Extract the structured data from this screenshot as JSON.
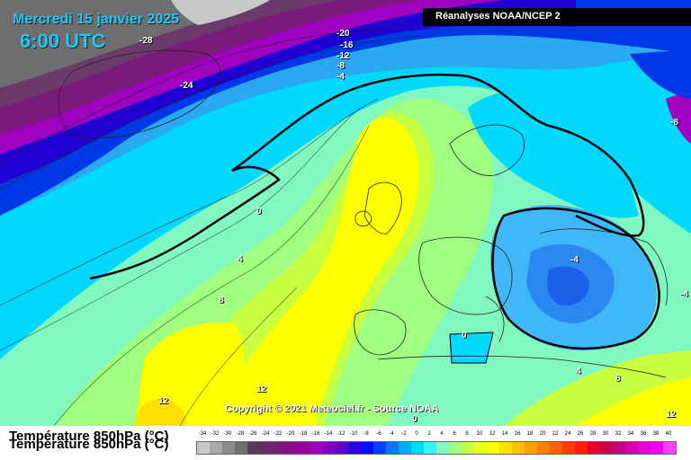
{
  "header": {
    "date": "Mercredi 15 janvier 2025",
    "time": "6:00 UTC",
    "source": "Réanalyses NOAA/NCEP 2"
  },
  "copyright": "Copyright © 2021 Meteociel.fr - Source NOAA",
  "footer": {
    "title": "Température 850hPa (°C)"
  },
  "contour_labels": [
    {
      "id": "l-28",
      "text": "-28"
    },
    {
      "id": "l-24",
      "text": "-24"
    },
    {
      "id": "l-20",
      "text": "-20"
    },
    {
      "id": "l-16",
      "text": "-16"
    },
    {
      "id": "l-12",
      "text": "-12"
    },
    {
      "id": "l-8a",
      "text": "-8"
    },
    {
      "id": "l-4a",
      "text": "-4"
    },
    {
      "id": "l-8b",
      "text": "-8"
    },
    {
      "id": "l0a",
      "text": "0"
    },
    {
      "id": "l4a",
      "text": "4"
    },
    {
      "id": "l8a",
      "text": "8"
    },
    {
      "id": "l-4b",
      "text": "-4"
    },
    {
      "id": "l-4c",
      "text": "-4"
    },
    {
      "id": "l0b",
      "text": "0"
    },
    {
      "id": "l4b",
      "text": "4"
    },
    {
      "id": "l8b",
      "text": "8"
    },
    {
      "id": "l12a",
      "text": "12"
    },
    {
      "id": "l12b",
      "text": "12"
    },
    {
      "id": "l12c",
      "text": "12"
    },
    {
      "id": "l0c",
      "text": "0"
    }
  ],
  "legend": {
    "ticks": [
      "-34",
      "-32",
      "-30",
      "-28",
      "-26",
      "-24",
      "-22",
      "-20",
      "-18",
      "-16",
      "-14",
      "-12",
      "-10",
      "-8",
      "-6",
      "-4",
      "-2",
      "0",
      "2",
      "4",
      "6",
      "8",
      "10",
      "12",
      "14",
      "16",
      "18",
      "20",
      "22",
      "24",
      "26",
      "28",
      "30",
      "32",
      "34",
      "36",
      "38",
      "40"
    ],
    "colors": [
      "#c8c8c8",
      "#a8a8a8",
      "#8c8c8c",
      "#6e6e6e",
      "#5a3a5a",
      "#6a2a6a",
      "#7a1a7a",
      "#8a0a8a",
      "#9a00a0",
      "#a000c0",
      "#8000c8",
      "#5a00d0",
      "#2a00e0",
      "#0010f0",
      "#0040ff",
      "#0078ff",
      "#00a8ff",
      "#00d8ff",
      "#40f0f0",
      "#80f8c0",
      "#a0ff80",
      "#c8ff40",
      "#e8ff20",
      "#ffff00",
      "#ffe000",
      "#ffc000",
      "#ffa000",
      "#ff8000",
      "#ff6000",
      "#ff4000",
      "#ff2000",
      "#e00030",
      "#c80050",
      "#c00080",
      "#d000b0",
      "#e000d8",
      "#f000f0",
      "#ff40ff"
    ]
  }
}
